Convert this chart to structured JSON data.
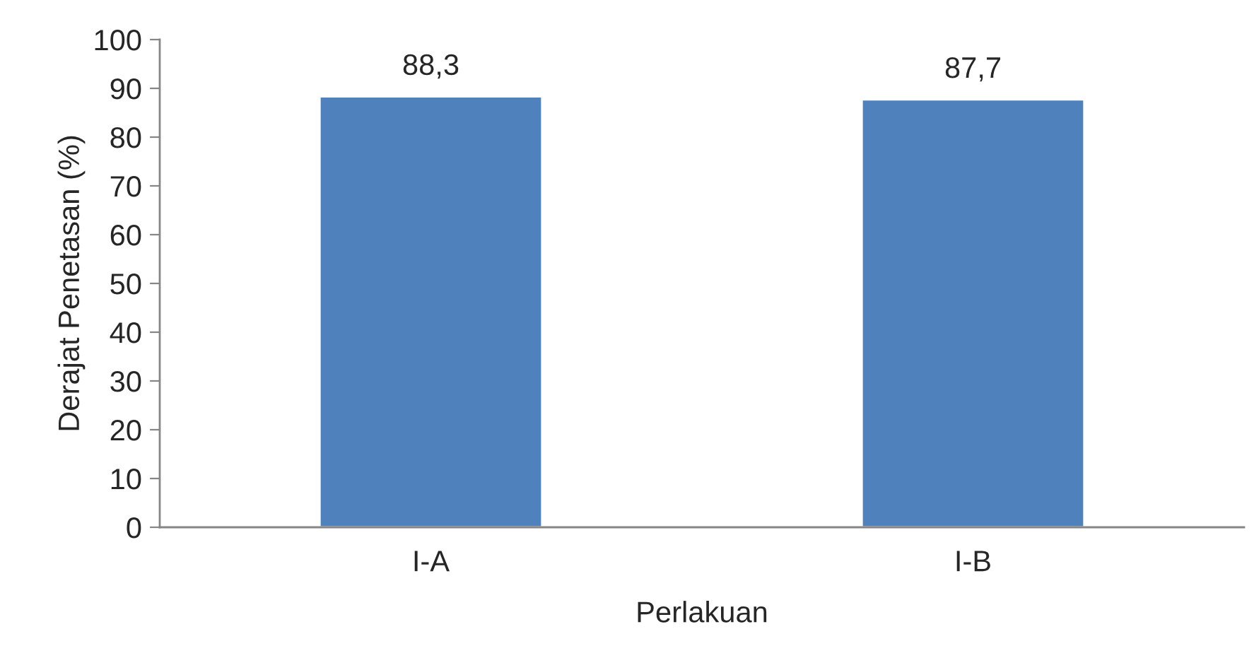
{
  "chart_data": {
    "type": "bar",
    "xlabel": "Perlakuan",
    "ylabel": "Derajat Penetasan (%)",
    "categories": [
      "I-A",
      "I-B"
    ],
    "values": [
      88.3,
      87.7
    ],
    "value_labels": [
      "88,3",
      "87,7"
    ],
    "color": "#4f81bd",
    "ylim": [
      0,
      100
    ],
    "yticks": [
      0,
      10,
      20,
      30,
      40,
      50,
      60,
      70,
      80,
      90,
      100
    ],
    "grid": false,
    "legend": false
  }
}
